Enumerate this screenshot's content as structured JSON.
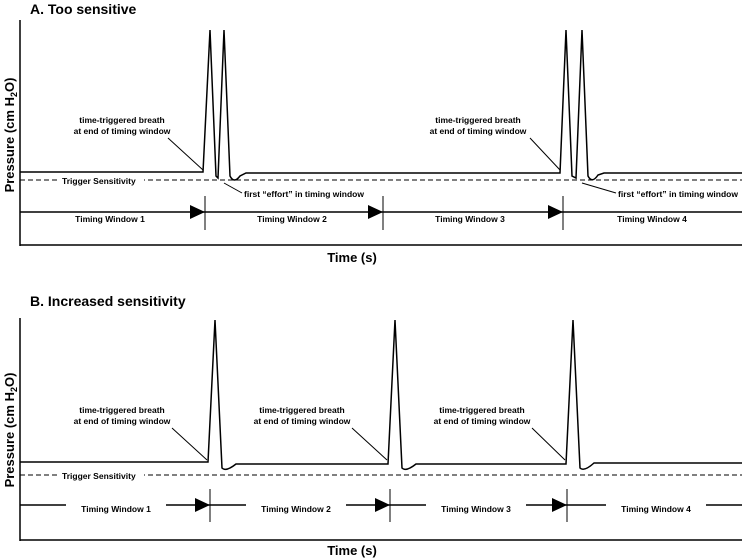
{
  "panels": [
    {
      "title": "A. Too sensitive",
      "y_label": {
        "prefix": "Pressure (cm H",
        "subscript": "2",
        "suffix": "O)"
      },
      "x_label": "Time (s)",
      "trigger_label": "Trigger Sensitivity",
      "annotations": [
        {
          "lines": [
            "time-triggered breath",
            "at end of timing window"
          ]
        },
        {
          "lines": [
            "time-triggered breath",
            "at end of timing window"
          ]
        }
      ],
      "effort_annotations": [
        "first “effort” in timing window",
        "first “effort” in timing window"
      ],
      "timing_windows": [
        "Timing Window 1",
        "Timing Window 2",
        "Timing Window 3",
        "Timing Window 4"
      ]
    },
    {
      "title": "B. Increased sensitivity",
      "y_label": {
        "prefix": "Pressure (cm H",
        "subscript": "2",
        "suffix": "O)"
      },
      "x_label": "Time (s)",
      "trigger_label": "Trigger Sensitivity",
      "annotations": [
        {
          "lines": [
            "time-triggered breath",
            "at end of timing window"
          ]
        },
        {
          "lines": [
            "time-triggered breath",
            "at end of timing window"
          ]
        },
        {
          "lines": [
            "time-triggered breath",
            "at end of timing window"
          ]
        }
      ],
      "timing_windows": [
        "Timing Window 1",
        "Timing Window 2",
        "Timing Window 3",
        "Timing Window 4"
      ]
    }
  ]
}
